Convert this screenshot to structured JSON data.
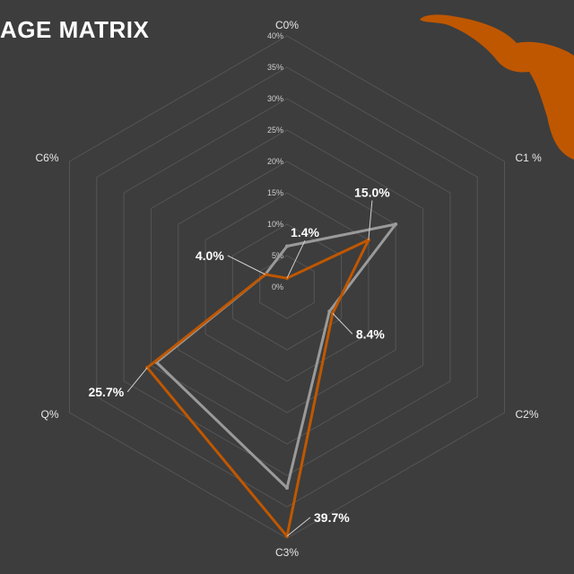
{
  "title": "AGE MATRIX",
  "colors": {
    "background": "#3d3d3d",
    "accent": "#bf5700",
    "comparison": "#9a9a9a",
    "grid": "#555555"
  },
  "logo": {
    "icon": "longhorn-icon"
  },
  "chart_data": {
    "type": "radar",
    "title": "AGE MATRIX",
    "axes": [
      "C0%",
      "C1 %",
      "C2%",
      "C3%",
      "Q%",
      "C6%"
    ],
    "r_ticks": [
      "0%",
      "5%",
      "10%",
      "15%",
      "20%",
      "25%",
      "30%",
      "35%",
      "40%"
    ],
    "rlim": [
      0,
      40
    ],
    "grid": true,
    "series": [
      {
        "values": [
          6.5,
          20.0,
          7.8,
          32.0,
          24.0,
          4.0
        ],
        "color": "#9a9a9a"
      },
      {
        "values": [
          1.4,
          15.0,
          8.4,
          39.7,
          25.7,
          4.0
        ],
        "color": "#bf5700",
        "data_labels": [
          "1.4%",
          "15.0%",
          "8.4%",
          "39.7%",
          "25.7%",
          "4.0%"
        ]
      }
    ]
  }
}
